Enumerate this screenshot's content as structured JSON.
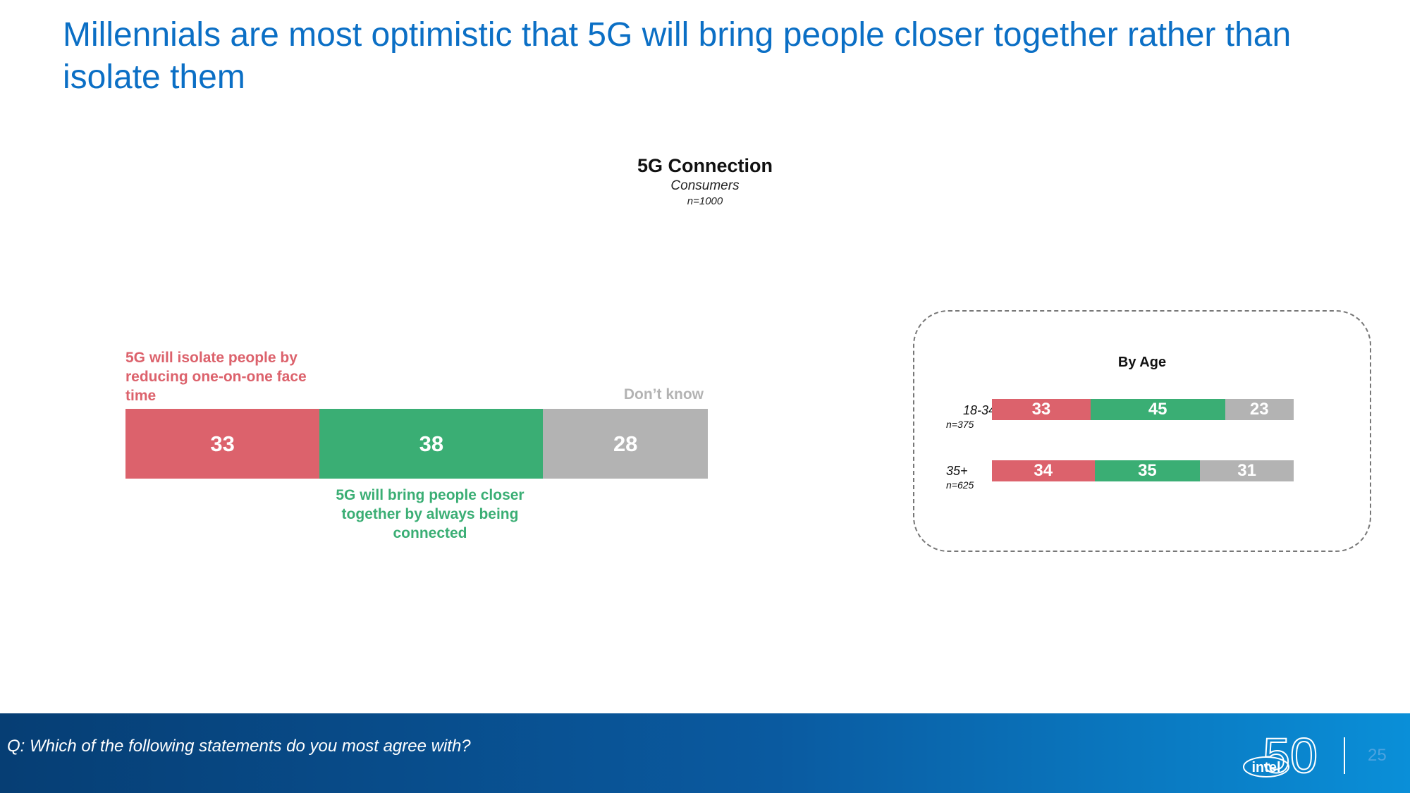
{
  "slide": {
    "title": "Millennials are most optimistic that 5G will bring people closer together rather than isolate them",
    "question": "Q: Which of the following statements do you most agree with?",
    "page_number": "25",
    "logo_text": "intel",
    "logo_number": "50"
  },
  "chart_data": [
    {
      "type": "bar",
      "orientation": "horizontal-stacked",
      "title": "5G Connection",
      "subtitle": "Consumers",
      "sample": "n=1000",
      "series": [
        {
          "name": "5G will isolate people by reducing one-on-one face time",
          "values": [
            33
          ],
          "color": "#dc626c"
        },
        {
          "name": "5G will bring people closer together by always being connected",
          "values": [
            38
          ],
          "color": "#3aae74"
        },
        {
          "name": "Don’t know",
          "values": [
            28
          ],
          "color": "#b3b3b3"
        }
      ],
      "values_text": [
        "33",
        "38",
        "28"
      ]
    },
    {
      "type": "bar",
      "orientation": "horizontal-stacked",
      "title": "By Age",
      "groups": [
        {
          "label": "18-34",
          "n": "n=375",
          "values": [
            33,
            45,
            23
          ],
          "values_text": [
            "33",
            "45",
            "23"
          ]
        },
        {
          "label": "35+",
          "n": "n=625",
          "values": [
            34,
            35,
            31
          ],
          "values_text": [
            "34",
            "35",
            "31"
          ]
        }
      ],
      "colors": [
        "#dc626c",
        "#3aae74",
        "#b3b3b3"
      ]
    }
  ],
  "labels": {
    "isolate": "5G will isolate people by reducing one-on-one face time",
    "closer": "5G will bring people closer together by always being connected",
    "dont_know": "Don’t know"
  }
}
